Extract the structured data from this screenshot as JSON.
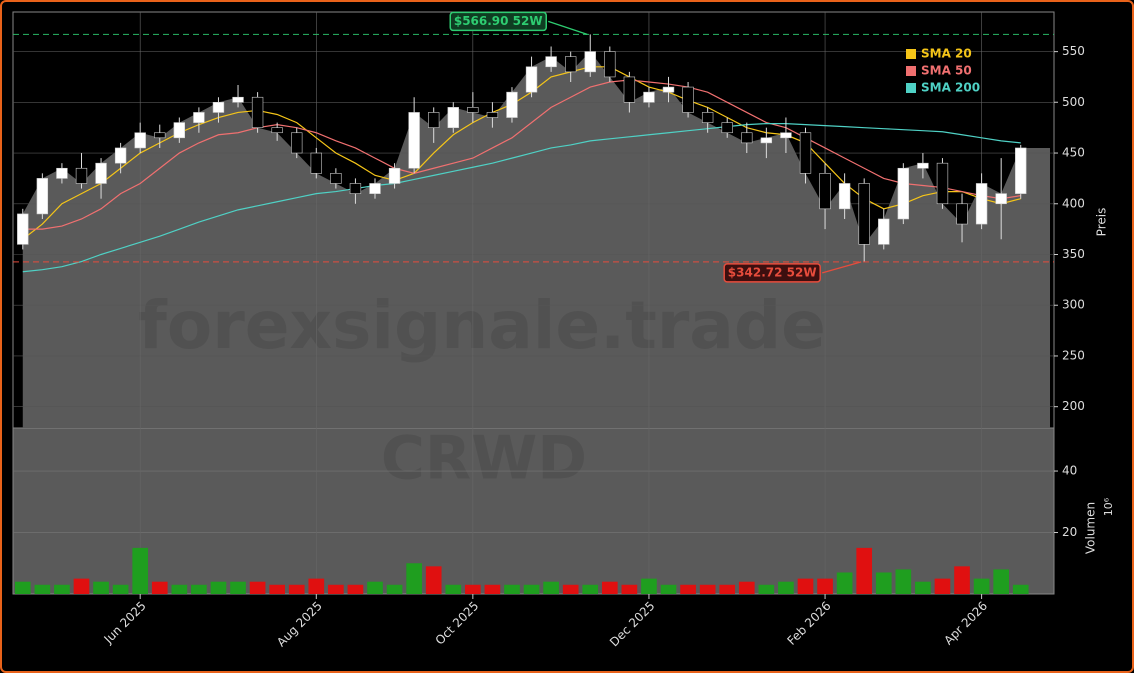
{
  "chart_data": {
    "type": "candlestick",
    "watermark": "forexsignale.trade",
    "symbol": "CRWD",
    "categories": [
      null,
      null,
      null,
      null,
      null,
      null,
      "Jun 2025",
      null,
      null,
      null,
      null,
      null,
      null,
      null,
      null,
      "Aug 2025",
      null,
      null,
      null,
      null,
      null,
      null,
      null,
      "Oct 2025",
      null,
      null,
      null,
      null,
      null,
      null,
      null,
      null,
      "Dec 2025",
      null,
      null,
      null,
      null,
      null,
      null,
      null,
      null,
      "Feb 2026",
      null,
      null,
      null,
      null,
      null,
      null,
      null,
      "Apr 2026",
      null,
      null
    ],
    "open": [
      360,
      390,
      425,
      435,
      420,
      440,
      455,
      470,
      465,
      480,
      490,
      500,
      505,
      475,
      470,
      450,
      430,
      420,
      410,
      420,
      435,
      490,
      475,
      495,
      490,
      485,
      510,
      535,
      545,
      530,
      550,
      525,
      500,
      510,
      515,
      490,
      480,
      470,
      460,
      465,
      470,
      430,
      395,
      420,
      360,
      385,
      435,
      440,
      400,
      380,
      400,
      410
    ],
    "high": [
      395,
      430,
      440,
      450,
      445,
      460,
      480,
      478,
      485,
      495,
      505,
      517,
      510,
      480,
      475,
      455,
      435,
      425,
      425,
      440,
      505,
      495,
      500,
      510,
      500,
      515,
      545,
      555,
      550,
      566.9,
      555,
      530,
      515,
      525,
      520,
      495,
      485,
      480,
      475,
      485,
      475,
      440,
      430,
      425,
      395,
      440,
      450,
      445,
      410,
      430,
      445,
      458
    ],
    "low": [
      355,
      385,
      420,
      415,
      405,
      430,
      450,
      455,
      460,
      470,
      480,
      495,
      470,
      462,
      445,
      425,
      415,
      400,
      405,
      415,
      430,
      460,
      470,
      480,
      475,
      480,
      505,
      530,
      520,
      525,
      520,
      490,
      495,
      500,
      485,
      470,
      465,
      450,
      445,
      450,
      420,
      375,
      385,
      342.72,
      355,
      380,
      425,
      395,
      362,
      375,
      365,
      405
    ],
    "close": [
      390,
      425,
      435,
      420,
      440,
      455,
      470,
      465,
      480,
      490,
      500,
      505,
      475,
      470,
      450,
      430,
      420,
      410,
      420,
      435,
      490,
      475,
      495,
      490,
      485,
      510,
      535,
      545,
      530,
      550,
      525,
      500,
      510,
      515,
      490,
      480,
      470,
      460,
      465,
      470,
      430,
      395,
      420,
      360,
      385,
      435,
      440,
      400,
      380,
      420,
      410,
      455
    ],
    "up_color": "#ffffff",
    "down_color": "#000000",
    "area_color": "#5a5a5a",
    "series": [
      {
        "name": "SMA 20",
        "color": "#f5c518",
        "values": [
          365,
          380,
          400,
          410,
          420,
          435,
          450,
          460,
          470,
          478,
          485,
          490,
          492,
          488,
          480,
          465,
          450,
          440,
          428,
          423,
          430,
          450,
          468,
          480,
          490,
          498,
          510,
          525,
          530,
          535,
          535,
          525,
          515,
          510,
          502,
          495,
          485,
          475,
          470,
          468,
          460,
          440,
          420,
          405,
          395,
          400,
          408,
          412,
          412,
          405,
          400,
          405
        ]
      },
      {
        "name": "SMA 50",
        "color": "#f07070",
        "values": [
          375,
          375,
          378,
          385,
          395,
          410,
          420,
          435,
          450,
          460,
          468,
          470,
          475,
          478,
          475,
          470,
          462,
          455,
          445,
          435,
          430,
          435,
          440,
          445,
          455,
          465,
          480,
          495,
          505,
          515,
          520,
          522,
          520,
          518,
          515,
          510,
          500,
          490,
          480,
          475,
          465,
          455,
          445,
          435,
          425,
          420,
          418,
          416,
          412,
          408,
          405,
          408
        ]
      },
      {
        "name": "SMA 200",
        "color": "#4fd1c5",
        "values": [
          333,
          335,
          338,
          343,
          350,
          356,
          362,
          368,
          375,
          382,
          388,
          394,
          398,
          402,
          406,
          410,
          412,
          415,
          418,
          420,
          424,
          428,
          432,
          436,
          440,
          445,
          450,
          455,
          458,
          462,
          464,
          466,
          468,
          470,
          472,
          474,
          476,
          478,
          479,
          479,
          478,
          477,
          476,
          475,
          474,
          473,
          472,
          471,
          468,
          465,
          462,
          460
        ]
      }
    ],
    "ylim": [
      179,
      589
    ],
    "yticks": [
      200,
      250,
      300,
      350,
      400,
      450,
      500,
      550
    ],
    "ylabel": "Preis",
    "grid": true,
    "legend": "upper right",
    "annotations": [
      {
        "label": "$566.90 52W",
        "value": 566.9,
        "color": "#2ecc71"
      },
      {
        "label": "$342.72 52W",
        "value": 342.72,
        "color": "#e74c3c"
      }
    ],
    "volume": {
      "values": [
        4,
        3,
        3,
        5,
        4,
        3,
        15,
        4,
        3,
        3,
        4,
        4,
        4,
        3,
        3,
        5,
        3,
        3,
        4,
        3,
        10,
        9,
        3,
        3,
        3,
        3,
        3,
        4,
        3,
        3,
        4,
        3,
        5,
        3,
        3,
        3,
        3,
        4,
        3,
        4,
        5,
        5,
        7,
        15,
        7,
        8,
        4,
        5,
        9,
        5,
        8,
        3
      ],
      "up_color": "#1f9e1f",
      "down_color": "#e01010",
      "ylim": [
        0,
        54
      ],
      "yticks": [
        20,
        40
      ],
      "ylabel": "Volumen",
      "multiplier_label": "10⁶"
    }
  }
}
